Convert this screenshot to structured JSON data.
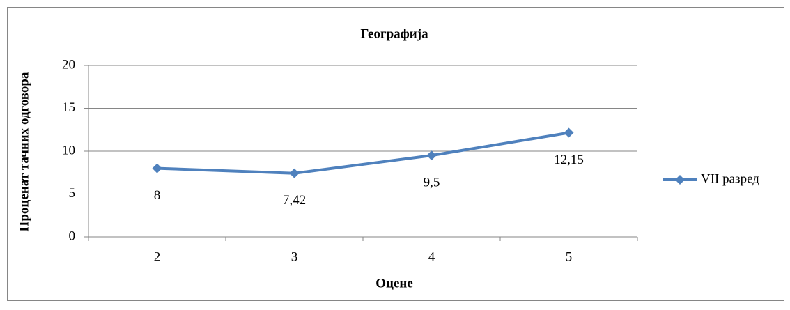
{
  "chart_data": {
    "type": "line",
    "title": "Географија",
    "x_label": "Оцене",
    "y_label": "Проценат тачних одговора",
    "categories": [
      "2",
      "3",
      "4",
      "5"
    ],
    "series": [
      {
        "name": "VII разред",
        "color": "#4f81bd",
        "values": [
          8,
          7.42,
          9.5,
          12.15
        ],
        "value_labels": [
          "8",
          "7,42",
          "9,5",
          "12,15"
        ]
      }
    ],
    "ylim": [
      0,
      20
    ],
    "yticks": [
      0,
      5,
      10,
      15,
      20
    ],
    "grid": true,
    "legend": "right"
  }
}
